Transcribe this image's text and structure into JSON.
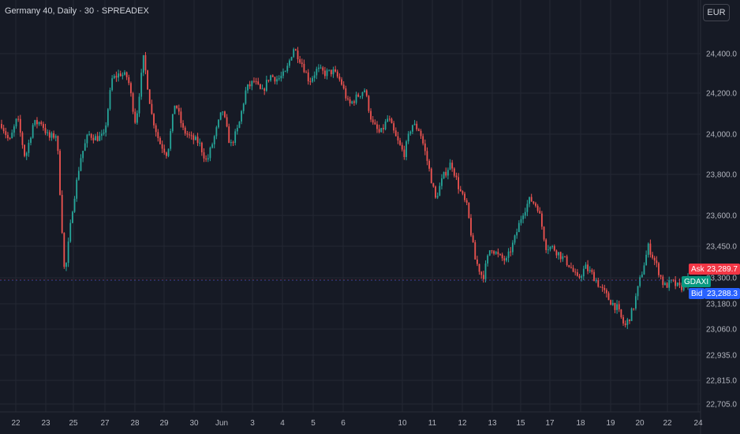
{
  "header": {
    "title": "Germany 40, Daily · 30 · SPREADEX",
    "currency": "EUR"
  },
  "price_tags": {
    "ask_label": "Ask",
    "ask_value": "23,289.7",
    "symbol": "GDAXI",
    "bid_label": "Bid",
    "bid_value": "23,288.3"
  },
  "colors": {
    "background": "#161a25",
    "grid": "#242833",
    "up": "#26a69a",
    "down": "#ef5350",
    "ask": "#f23645",
    "bid": "#2962ff",
    "symbol": "#089981"
  },
  "chart_data": {
    "type": "candlestick",
    "interval": "30 min",
    "y_ticks": [
      "24,400.0",
      "24,200.0",
      "24,000.0",
      "23,800.0",
      "23,600.0",
      "23,450.0",
      "23,300.0",
      "23,180.0",
      "23,060.0",
      "22,935.0",
      "22,815.0",
      "22,705.0"
    ],
    "x_ticks": [
      "22",
      "23",
      "25",
      "27",
      "28",
      "29",
      "30",
      "Jun",
      "3",
      "4",
      "5",
      "6",
      "10",
      "11",
      "12",
      "13",
      "15",
      "17",
      "18",
      "19",
      "20",
      "22",
      "24"
    ],
    "grid": true,
    "close_path": [
      24050,
      23960,
      24080,
      23880,
      24050,
      24060,
      23980,
      24000,
      23300,
      23640,
      23880,
      24000,
      23980,
      23990,
      24270,
      24300,
      24280,
      24050,
      24380,
      24100,
      23960,
      23900,
      24160,
      24020,
      23980,
      23960,
      23860,
      23990,
      24120,
      23940,
      24030,
      24220,
      24260,
      24200,
      24290,
      24270,
      24300,
      24430,
      24360,
      24260,
      24320,
      24300,
      24310,
      24260,
      24140,
      24180,
      24220,
      24050,
      24000,
      24080,
      23980,
      23900,
      24050,
      24020,
      23860,
      23680,
      23790,
      23860,
      23730,
      23640,
      23390,
      23300,
      23450,
      23400,
      23380,
      23480,
      23610,
      23680,
      23640,
      23450,
      23440,
      23400,
      23360,
      23290,
      23350,
      23310,
      23250,
      23200,
      23160,
      23070,
      23150,
      23300,
      23450,
      23360,
      23260,
      23280,
      23250,
      23290
    ]
  }
}
